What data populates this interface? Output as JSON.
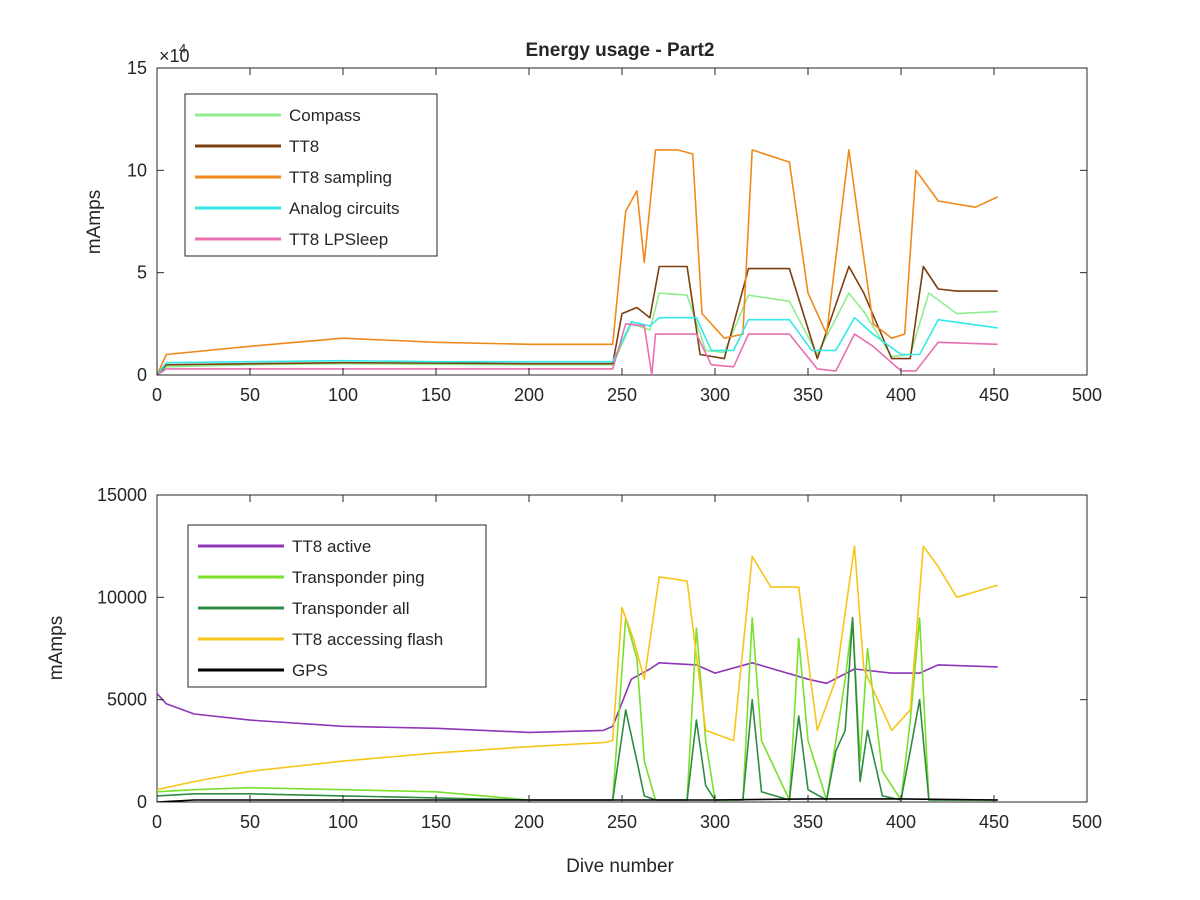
{
  "figure": {
    "title": "Energy usage - Part2",
    "xlabel": "Dive number"
  },
  "chart_data": [
    {
      "type": "line",
      "title": "Energy usage - Part2",
      "ylabel": "mAmps",
      "xlim": [
        0,
        500
      ],
      "ylim": [
        0,
        150000
      ],
      "exponent_label": "×10",
      "exponent_power": "4",
      "x_ticks": [
        0,
        50,
        100,
        150,
        200,
        250,
        300,
        350,
        400,
        450,
        500
      ],
      "x_tick_labels": [
        "0",
        "50",
        "100",
        "150",
        "200",
        "250",
        "300",
        "350",
        "400",
        "450",
        "500"
      ],
      "y_ticks": [
        0,
        50000,
        100000,
        150000
      ],
      "y_tick_labels": [
        "0",
        "5",
        "10",
        "15"
      ],
      "grid": false,
      "legend_position": "top-left",
      "series": [
        {
          "name": "Compass",
          "color": "#90ee90",
          "x": [
            0,
            5,
            50,
            100,
            150,
            200,
            245,
            255,
            265,
            270,
            285,
            295,
            305,
            318,
            340,
            355,
            372,
            380,
            395,
            405,
            415,
            430,
            452
          ],
          "y": [
            0,
            4000,
            5000,
            5500,
            5200,
            5000,
            5000,
            25000,
            22000,
            40000,
            39000,
            12000,
            11000,
            39000,
            36000,
            10000,
            40000,
            31000,
            9000,
            10000,
            40000,
            30000,
            31000
          ]
        },
        {
          "name": "TT8",
          "color": "#7b3f10",
          "x": [
            0,
            5,
            50,
            100,
            150,
            200,
            245,
            250,
            258,
            265,
            270,
            285,
            292,
            305,
            318,
            340,
            355,
            372,
            380,
            395,
            405,
            412,
            420,
            430,
            452
          ],
          "y": [
            0,
            5000,
            5500,
            6000,
            5800,
            5500,
            5500,
            30000,
            33000,
            28000,
            53000,
            53000,
            10000,
            8000,
            52000,
            52000,
            8000,
            53000,
            40000,
            8000,
            8000,
            53000,
            42000,
            41000,
            41000
          ]
        },
        {
          "name": "TT8 sampling",
          "color": "#f0891a",
          "x": [
            0,
            5,
            50,
            100,
            150,
            200,
            245,
            252,
            258,
            262,
            268,
            280,
            288,
            293,
            305,
            315,
            320,
            340,
            350,
            360,
            372,
            378,
            385,
            395,
            402,
            408,
            420,
            440,
            452
          ],
          "y": [
            0,
            10000,
            14000,
            18000,
            16000,
            15000,
            15000,
            80000,
            90000,
            55000,
            110000,
            110000,
            108000,
            30000,
            18000,
            20000,
            110000,
            104000,
            40000,
            20000,
            110000,
            70000,
            25000,
            18000,
            20000,
            100000,
            85000,
            82000,
            87000
          ]
        },
        {
          "name": "Analog circuits",
          "color": "#33e8e8",
          "x": [
            0,
            5,
            50,
            100,
            150,
            200,
            245,
            255,
            265,
            270,
            290,
            298,
            310,
            318,
            340,
            352,
            365,
            375,
            385,
            400,
            410,
            420,
            452
          ],
          "y": [
            0,
            6000,
            6500,
            7000,
            6500,
            6500,
            6500,
            26000,
            24000,
            28000,
            28000,
            12000,
            12000,
            27000,
            27000,
            12000,
            12000,
            28000,
            20000,
            10000,
            10000,
            27000,
            23000
          ]
        },
        {
          "name": "TT8 LPSleep",
          "color": "#e870b0",
          "x": [
            0,
            5,
            50,
            100,
            150,
            200,
            245,
            252,
            262,
            266,
            268,
            290,
            298,
            310,
            318,
            340,
            355,
            365,
            375,
            385,
            400,
            408,
            420,
            452
          ],
          "y": [
            0,
            3000,
            3000,
            3000,
            3000,
            3000,
            3000,
            25000,
            24000,
            0,
            20000,
            20000,
            5000,
            4000,
            20000,
            20000,
            3000,
            2000,
            20000,
            14000,
            2000,
            2000,
            16000,
            15000
          ]
        }
      ]
    },
    {
      "type": "line",
      "ylabel": "mAmps",
      "xlim": [
        0,
        500
      ],
      "ylim": [
        0,
        15000
      ],
      "x_ticks": [
        0,
        50,
        100,
        150,
        200,
        250,
        300,
        350,
        400,
        450,
        500
      ],
      "x_tick_labels": [
        "0",
        "50",
        "100",
        "150",
        "200",
        "250",
        "300",
        "350",
        "400",
        "450",
        "500"
      ],
      "y_ticks": [
        0,
        5000,
        10000,
        15000
      ],
      "y_tick_labels": [
        "0",
        "5000",
        "10000",
        "15000"
      ],
      "grid": false,
      "legend_position": "top-left",
      "series": [
        {
          "name": "TT8 active",
          "color": "#8e35b8",
          "x": [
            0,
            5,
            20,
            50,
            100,
            150,
            200,
            240,
            245,
            255,
            265,
            270,
            290,
            300,
            320,
            350,
            360,
            375,
            395,
            410,
            420,
            452
          ],
          "y": [
            5300,
            4800,
            4300,
            4000,
            3700,
            3600,
            3400,
            3500,
            3700,
            6000,
            6500,
            6800,
            6700,
            6300,
            6800,
            6000,
            5800,
            6500,
            6300,
            6300,
            6700,
            6600
          ]
        },
        {
          "name": "Transponder ping",
          "color": "#7ae02a",
          "x": [
            0,
            20,
            50,
            100,
            150,
            200,
            245,
            252,
            258,
            262,
            268,
            285,
            290,
            295,
            300,
            315,
            320,
            325,
            340,
            345,
            350,
            360,
            365,
            370,
            374,
            378,
            382,
            390,
            400,
            405,
            410,
            415,
            452
          ],
          "y": [
            500,
            600,
            700,
            600,
            500,
            100,
            100,
            9000,
            7000,
            2000,
            100,
            100,
            8500,
            3000,
            100,
            100,
            9000,
            3000,
            100,
            8000,
            3000,
            100,
            3000,
            6000,
            9000,
            2000,
            7500,
            1500,
            100,
            4000,
            9000,
            100,
            100
          ]
        },
        {
          "name": "Transponder all",
          "color": "#2e8b45",
          "x": [
            0,
            20,
            50,
            100,
            150,
            200,
            245,
            252,
            258,
            262,
            268,
            285,
            290,
            295,
            300,
            315,
            320,
            325,
            340,
            345,
            350,
            360,
            365,
            370,
            374,
            378,
            382,
            390,
            400,
            405,
            410,
            415,
            452
          ],
          "y": [
            300,
            400,
            400,
            300,
            200,
            100,
            100,
            4500,
            2000,
            300,
            100,
            100,
            4000,
            800,
            100,
            100,
            5000,
            500,
            100,
            4200,
            600,
            100,
            2500,
            3500,
            9000,
            1000,
            3500,
            300,
            100,
            2500,
            5000,
            100,
            100
          ]
        },
        {
          "name": "TT8 accessing flash",
          "color": "#f7c51a",
          "x": [
            0,
            20,
            50,
            100,
            150,
            200,
            240,
            245,
            250,
            256,
            262,
            270,
            285,
            295,
            310,
            320,
            330,
            345,
            355,
            365,
            375,
            380,
            395,
            405,
            412,
            420,
            430,
            452
          ],
          "y": [
            600,
            1000,
            1500,
            2000,
            2400,
            2700,
            2900,
            3000,
            9500,
            8000,
            6000,
            11000,
            10800,
            3500,
            3000,
            12000,
            10500,
            10500,
            3500,
            6000,
            12500,
            6500,
            3500,
            4500,
            12500,
            11500,
            10000,
            10600
          ]
        },
        {
          "name": "GPS",
          "color": "#000000",
          "x": [
            0,
            20,
            50,
            100,
            150,
            200,
            245,
            300,
            350,
            400,
            452
          ],
          "y": [
            0,
            100,
            100,
            100,
            100,
            100,
            100,
            100,
            150,
            150,
            100
          ]
        }
      ]
    }
  ]
}
